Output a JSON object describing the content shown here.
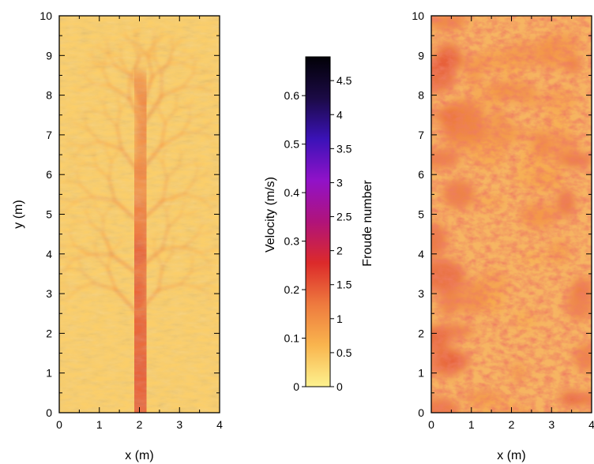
{
  "chart_data": [
    {
      "type": "heatmap",
      "quantity": "Velocity (m/s)",
      "xlabel": "x (m)",
      "ylabel": "y (m)",
      "xlim": [
        0,
        4
      ],
      "ylim": [
        0,
        10
      ],
      "x_ticks": [
        "0",
        "1",
        "2",
        "3",
        "4"
      ],
      "y_ticks": [
        "0",
        "1",
        "2",
        "3",
        "4",
        "5",
        "6",
        "7",
        "8",
        "9",
        "10"
      ],
      "features": {
        "main_channel": {
          "centerline": [
            [
              2.05,
              0
            ],
            [
              2.0,
              1
            ],
            [
              1.95,
              2
            ],
            [
              1.9,
              3
            ],
            [
              1.95,
              4
            ],
            [
              2.0,
              5
            ],
            [
              2.05,
              6
            ],
            [
              2.1,
              7
            ],
            [
              2.15,
              7.8
            ],
            [
              2.0,
              8.4
            ]
          ],
          "peak_velocity": 0.22
        },
        "background_velocity": 0.05
      }
    },
    {
      "type": "heatmap",
      "quantity": "Froude number",
      "xlabel": "x (m)",
      "ylabel": "",
      "xlim": [
        0,
        4
      ],
      "ylim": [
        0,
        10
      ],
      "x_ticks": [
        "0",
        "1",
        "2",
        "3",
        "4"
      ],
      "y_ticks": [
        "0",
        "1",
        "2",
        "3",
        "4",
        "5",
        "6",
        "7",
        "8",
        "9",
        "10"
      ],
      "features": {
        "background_froude": 0.9,
        "edge_froude": 1.3
      }
    },
    {
      "type": "colorbar",
      "colormap": "inferno-reversed",
      "colors": [
        "#fdf28f",
        "#f9b54e",
        "#ee7a3e",
        "#dc2a2a",
        "#b0137a",
        "#9112c8",
        "#3b12b8",
        "#1b0a45",
        "#020107"
      ],
      "left_axis": {
        "label": "Velocity (m/s)",
        "range": [
          0,
          0.68
        ],
        "ticks": [
          0,
          0.1,
          0.2,
          0.3,
          0.4,
          0.5,
          0.6
        ],
        "tick_labels": [
          "0",
          "0.1",
          "0.2",
          "0.3",
          "0.4",
          "0.5",
          "0.6"
        ]
      },
      "right_axis": {
        "label": "Froude number",
        "range": [
          0,
          4.85
        ],
        "ticks": [
          0,
          0.5,
          1,
          1.5,
          2,
          2.5,
          3,
          3.5,
          4,
          4.5
        ],
        "tick_labels": [
          "0",
          "0.5",
          "1",
          "1.5",
          "2",
          "2.5",
          "3",
          "3.5",
          "4",
          "4.5"
        ]
      }
    }
  ]
}
